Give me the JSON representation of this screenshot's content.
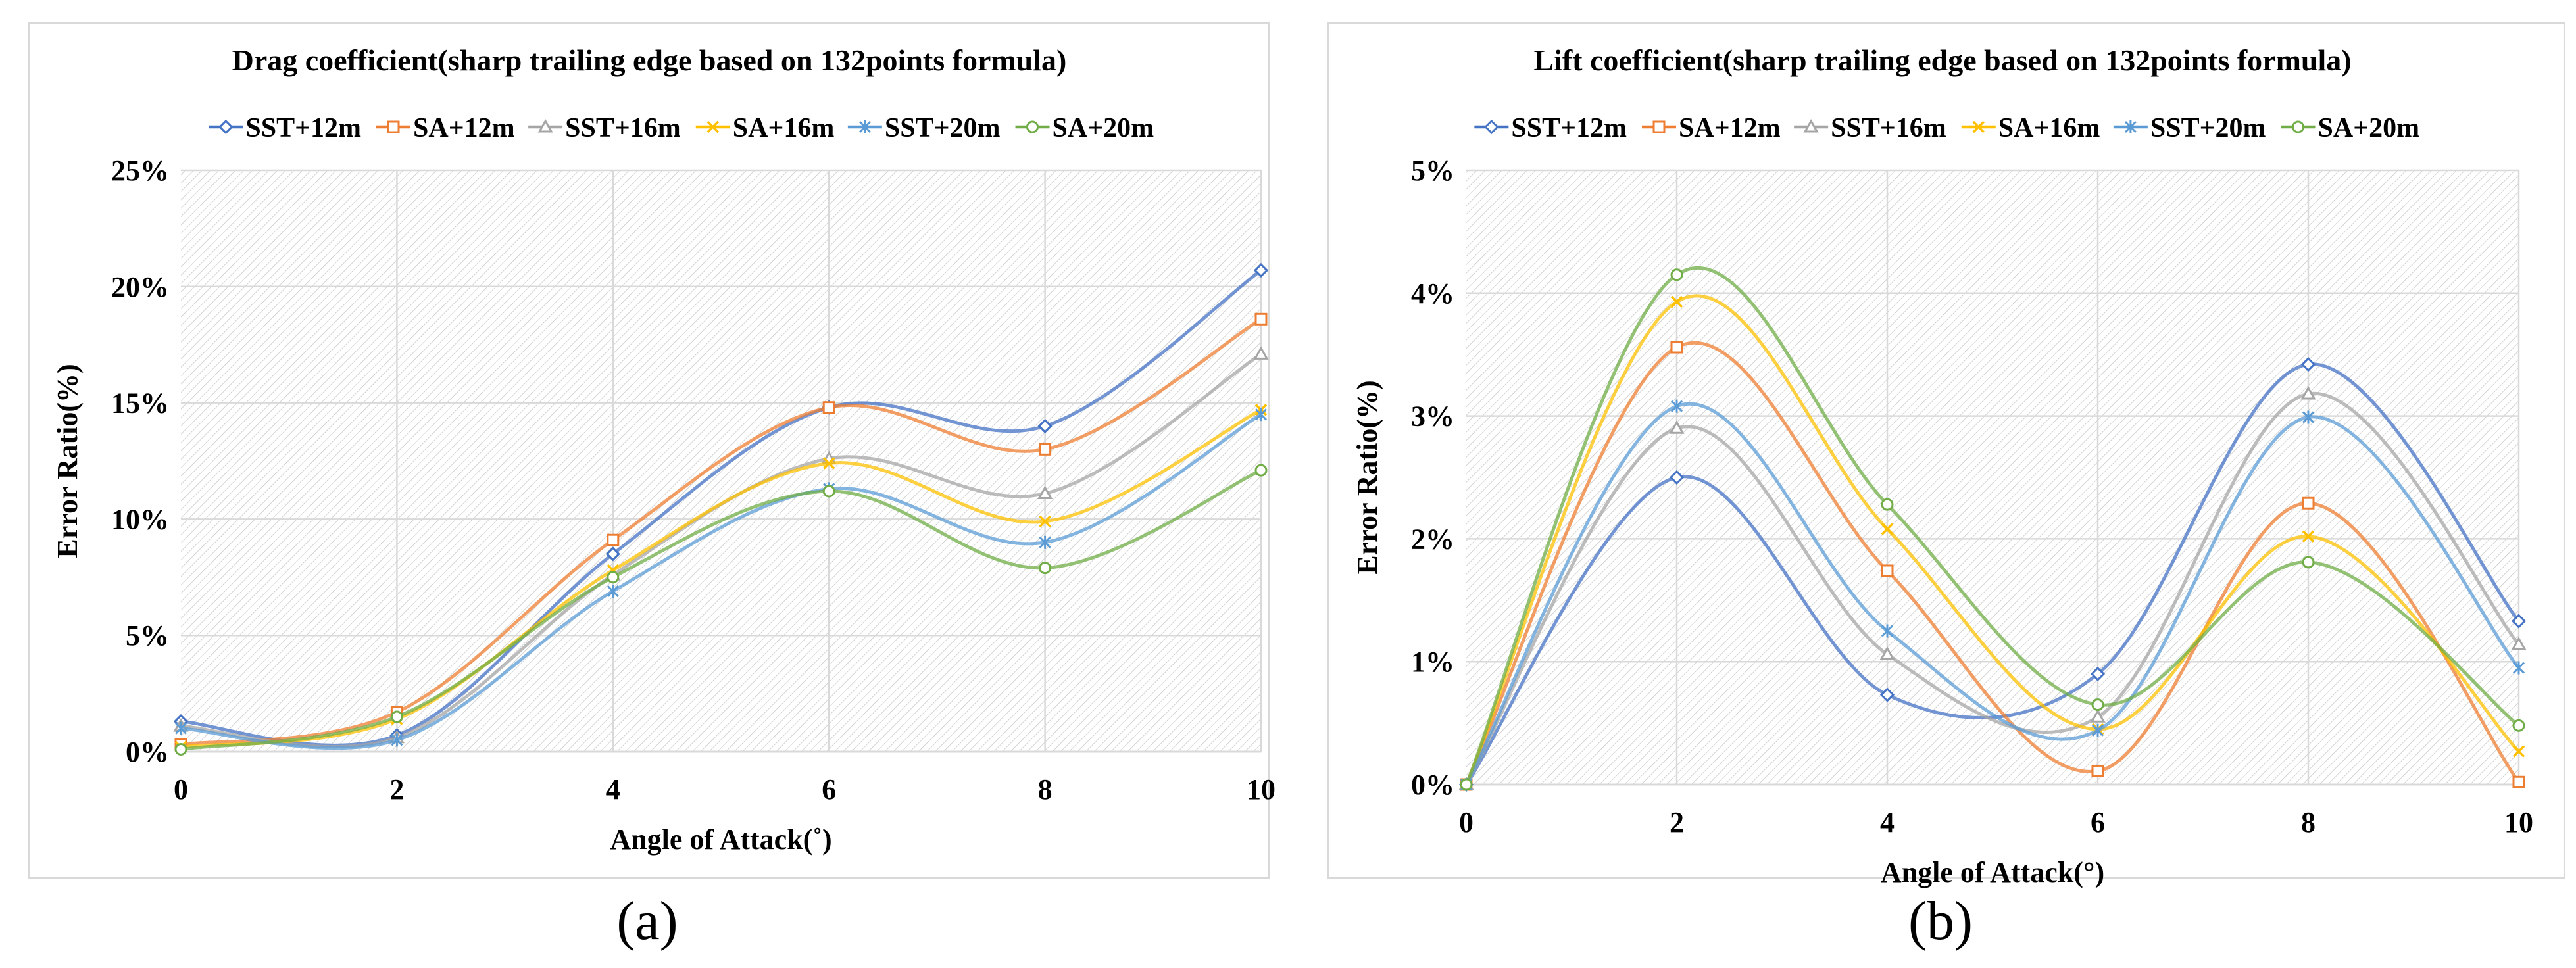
{
  "colors": {
    "SST+12m": "#4472c4",
    "SA+12m": "#ed7d31",
    "SST+16m": "#a5a5a5",
    "SA+16m": "#ffc000",
    "SST+20m": "#5b9bd5",
    "SA+20m": "#70ad47",
    "grid": "#d9d9d9",
    "hatch": "#c8c8c8"
  },
  "labels": {
    "a": "(a)",
    "b": "(b)"
  },
  "chart_data": [
    {
      "type": "line",
      "smooth": true,
      "title": "Drag coefficient(sharp trailing edge based on 132points formula)",
      "xlabel": "Angle of Attack(˚)",
      "ylabel": "Error Ratio(%)",
      "x": [
        0,
        2,
        4,
        6,
        8,
        10
      ],
      "xticks": [
        "0",
        "2",
        "4",
        "6",
        "8",
        "10"
      ],
      "xlim": [
        0,
        10
      ],
      "ylim": [
        0,
        25
      ],
      "yticks": [
        0,
        5,
        10,
        15,
        20,
        25
      ],
      "ytick_labels": [
        "0%",
        "5%",
        "10%",
        "15%",
        "20%",
        "25%"
      ],
      "grid": true,
      "legend_position": "top",
      "series": [
        {
          "name": "SST+12m",
          "marker": "diamond",
          "values": [
            1.3,
            0.7,
            8.5,
            14.8,
            14.0,
            20.7
          ]
        },
        {
          "name": "SA+12m",
          "marker": "square",
          "values": [
            0.3,
            1.7,
            9.1,
            14.8,
            13.0,
            18.6
          ]
        },
        {
          "name": "SST+16m",
          "marker": "triangle",
          "values": [
            1.1,
            0.6,
            7.6,
            12.6,
            11.1,
            17.1
          ]
        },
        {
          "name": "SA+16m",
          "marker": "x",
          "values": [
            0.2,
            1.4,
            7.8,
            12.4,
            9.9,
            14.7
          ]
        },
        {
          "name": "SST+20m",
          "marker": "asterisk",
          "values": [
            1.0,
            0.5,
            6.9,
            11.3,
            9.0,
            14.5
          ]
        },
        {
          "name": "SA+20m",
          "marker": "circle",
          "values": [
            0.1,
            1.5,
            7.5,
            11.2,
            7.9,
            12.1
          ]
        }
      ]
    },
    {
      "type": "line",
      "smooth": true,
      "title": "Lift coefficient(sharp trailing edge based on 132points formula)",
      "xlabel": "Angle of Attack(°)",
      "ylabel": "Error Ratio(%)",
      "x": [
        0,
        2,
        4,
        6,
        8,
        10
      ],
      "xticks": [
        "0",
        "2",
        "4",
        "6",
        "8",
        "10"
      ],
      "xlim": [
        0,
        10
      ],
      "ylim": [
        0,
        5
      ],
      "yticks": [
        0,
        1,
        2,
        3,
        4,
        5
      ],
      "ytick_labels": [
        "0%",
        "1%",
        "2%",
        "3%",
        "4%",
        "5%"
      ],
      "grid": true,
      "legend_position": "top",
      "series": [
        {
          "name": "SST+12m",
          "marker": "diamond",
          "values": [
            0.0,
            2.5,
            0.73,
            0.9,
            3.42,
            1.33
          ]
        },
        {
          "name": "SA+12m",
          "marker": "square",
          "values": [
            0.0,
            3.56,
            1.74,
            0.11,
            2.29,
            0.02
          ]
        },
        {
          "name": "SST+16m",
          "marker": "triangle",
          "values": [
            0.0,
            2.9,
            1.06,
            0.55,
            3.18,
            1.14
          ]
        },
        {
          "name": "SA+16m",
          "marker": "x",
          "values": [
            0.0,
            3.93,
            2.08,
            0.45,
            2.02,
            0.27
          ]
        },
        {
          "name": "SST+20m",
          "marker": "asterisk",
          "values": [
            0.0,
            3.08,
            1.25,
            0.44,
            2.99,
            0.95
          ]
        },
        {
          "name": "SA+20m",
          "marker": "circle",
          "values": [
            0.0,
            4.15,
            2.28,
            0.65,
            1.81,
            0.48
          ]
        }
      ]
    }
  ]
}
